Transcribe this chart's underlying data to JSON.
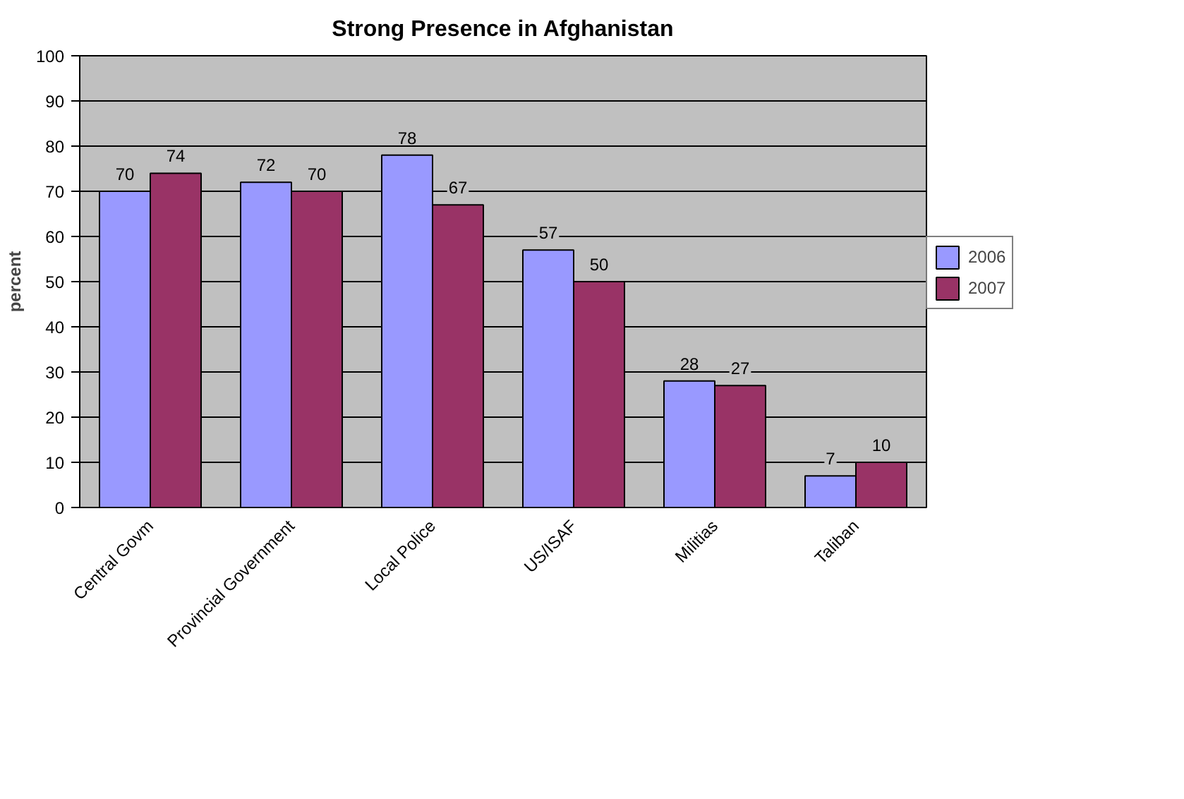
{
  "chart_data": {
    "type": "bar",
    "title": "Strong Presence in Afghanistan",
    "ylabel": "percent",
    "categories": [
      "Central Govm",
      "Provincial Government",
      "Local Police",
      "US/ISAF",
      "Militias",
      "Taliban"
    ],
    "series": [
      {
        "name": "2006",
        "color": "#9999ff",
        "values": [
          70,
          72,
          78,
          57,
          28,
          7
        ]
      },
      {
        "name": "2007",
        "color": "#993366",
        "values": [
          74,
          70,
          67,
          50,
          27,
          10
        ]
      }
    ],
    "ylim": [
      0,
      100
    ],
    "yticks": [
      0,
      10,
      20,
      30,
      40,
      50,
      60,
      70,
      80,
      90,
      100
    ],
    "grid": "y",
    "legend": "right",
    "data_labels": true
  }
}
